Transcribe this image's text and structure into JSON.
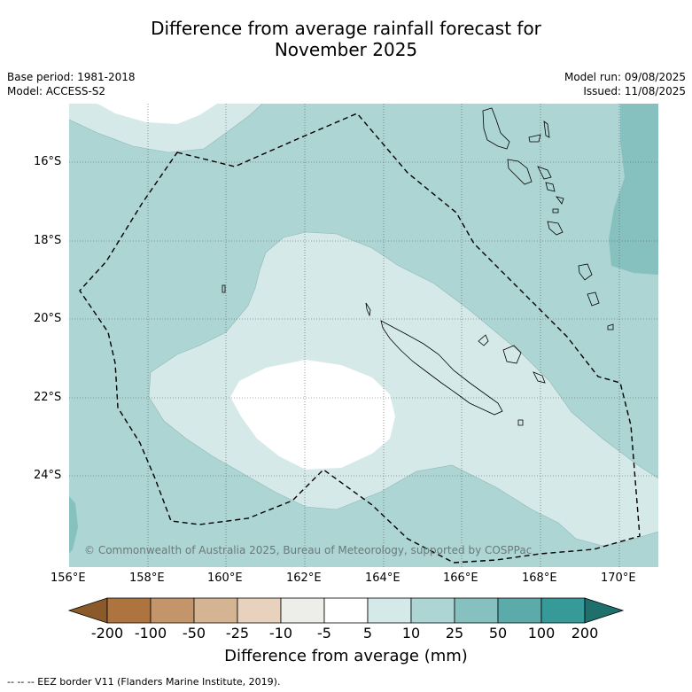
{
  "title_line1": "Difference from average rainfall forecast for",
  "title_line2": "November 2025",
  "meta_left": [
    "Base period: 1981-2018",
    "Model: ACCESS-S2"
  ],
  "meta_right": [
    "Model run: 09/08/2025",
    "Issued: 11/08/2025"
  ],
  "lat_labels": [
    "16°S",
    "18°S",
    "20°S",
    "22°S",
    "24°S"
  ],
  "lon_labels": [
    "156°E",
    "158°E",
    "160°E",
    "162°E",
    "164°E",
    "166°E",
    "168°E",
    "170°E"
  ],
  "copyright": "© Commonwealth of Australia 2025, Bureau of Meteorology, supported by COSPPac",
  "colorbar": {
    "title": "Difference from average (mm)",
    "tick_labels": [
      "-200",
      "-100",
      "-50",
      "-25",
      "-10",
      "-5",
      "5",
      "10",
      "25",
      "50",
      "100",
      "200"
    ],
    "colors": [
      "#8b5a2b",
      "#ad7440",
      "#c4956b",
      "#d5b494",
      "#e8d2bd",
      "#ededea",
      "#ffffff",
      "#d5e9e8",
      "#acd5d4",
      "#86c0bf",
      "#5aabaa",
      "#369b98",
      "#1f6f6c"
    ]
  },
  "footer": "--  --  -- EEZ border V11 (Flanders Marine Institute, 2019).",
  "map": {
    "lon_range": [
      156,
      171
    ],
    "lat_range": [
      -26.3,
      -14.5
    ]
  }
}
